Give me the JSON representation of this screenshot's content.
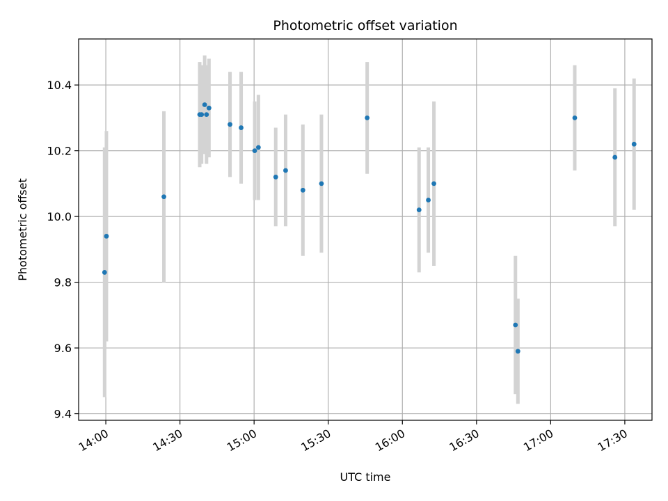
{
  "chart_data": {
    "type": "scatter",
    "title": "Photometric offset variation",
    "xlabel": "UTC time",
    "ylabel": "Photometric offset",
    "x_ticks": [
      "14:00",
      "14:30",
      "15:00",
      "15:30",
      "16:00",
      "16:30",
      "17:00",
      "17:30"
    ],
    "y_ticks": [
      "9.4",
      "9.6",
      "9.8",
      "10.0",
      "10.2",
      "10.4"
    ],
    "x_range": [
      "13:49",
      "17:41"
    ],
    "y_range": [
      9.38,
      10.54
    ],
    "grid": true,
    "marker_color": "#1f77b4",
    "errorbar_color": "#d3d3d3",
    "points": [
      {
        "time": "13:59:30",
        "y": 9.83,
        "yerr": 0.38
      },
      {
        "time": "14:00:15",
        "y": 9.94,
        "yerr": 0.32
      },
      {
        "time": "14:23:30",
        "y": 10.06,
        "yerr": 0.26
      },
      {
        "time": "14:38:00",
        "y": 10.31,
        "yerr": 0.16
      },
      {
        "time": "14:38:45",
        "y": 10.31,
        "yerr": 0.15
      },
      {
        "time": "14:40:00",
        "y": 10.34,
        "yerr": 0.15
      },
      {
        "time": "14:40:45",
        "y": 10.31,
        "yerr": 0.15
      },
      {
        "time": "14:41:45",
        "y": 10.33,
        "yerr": 0.15
      },
      {
        "time": "14:50:15",
        "y": 10.28,
        "yerr": 0.16
      },
      {
        "time": "14:54:45",
        "y": 10.27,
        "yerr": 0.17
      },
      {
        "time": "15:00:15",
        "y": 10.2,
        "yerr": 0.15
      },
      {
        "time": "15:01:45",
        "y": 10.21,
        "yerr": 0.16
      },
      {
        "time": "15:08:45",
        "y": 10.12,
        "yerr": 0.15
      },
      {
        "time": "15:12:45",
        "y": 10.14,
        "yerr": 0.17
      },
      {
        "time": "15:19:45",
        "y": 10.08,
        "yerr": 0.2
      },
      {
        "time": "15:27:15",
        "y": 10.1,
        "yerr": 0.21
      },
      {
        "time": "15:45:45",
        "y": 10.3,
        "yerr": 0.17
      },
      {
        "time": "16:06:45",
        "y": 10.02,
        "yerr": 0.19
      },
      {
        "time": "16:10:30",
        "y": 10.05,
        "yerr": 0.16
      },
      {
        "time": "16:12:45",
        "y": 10.1,
        "yerr": 0.25
      },
      {
        "time": "16:45:45",
        "y": 9.67,
        "yerr": 0.21
      },
      {
        "time": "16:46:45",
        "y": 9.59,
        "yerr": 0.16
      },
      {
        "time": "17:09:45",
        "y": 10.3,
        "yerr": 0.16
      },
      {
        "time": "17:26:00",
        "y": 10.18,
        "yerr": 0.21
      },
      {
        "time": "17:33:45",
        "y": 10.22,
        "yerr": 0.2
      }
    ]
  }
}
